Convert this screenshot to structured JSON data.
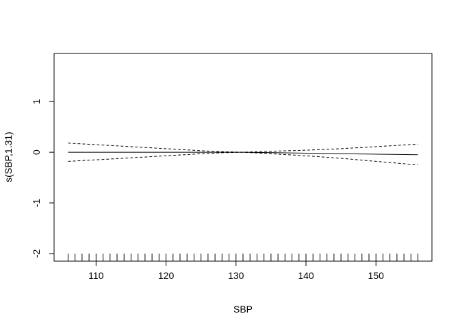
{
  "chart_data": {
    "type": "line",
    "title": "",
    "xlabel": "SBP",
    "ylabel": "s(SBP,1.31)",
    "xlim": [
      104,
      158
    ],
    "ylim": [
      -2.15,
      1.95
    ],
    "x_ticks": [
      110,
      120,
      130,
      140,
      150
    ],
    "y_ticks": [
      -2,
      -1,
      0,
      1
    ],
    "x_tick_labels": [
      "110",
      "120",
      "130",
      "140",
      "150"
    ],
    "y_tick_labels": [
      "-2",
      "-1",
      "0",
      "1"
    ],
    "grid": false,
    "legend": "none",
    "series": [
      {
        "style": "solid",
        "x": [
          106,
          131,
          156
        ],
        "y": [
          0.0,
          0.0,
          -0.05
        ]
      },
      {
        "style": "dashed",
        "x": [
          106,
          110,
          115,
          120,
          125,
          128,
          131,
          135,
          140,
          145,
          150,
          156
        ],
        "y": [
          0.18,
          0.15,
          0.11,
          0.07,
          0.03,
          0.01,
          0.0,
          0.02,
          0.04,
          0.07,
          0.11,
          0.16
        ]
      },
      {
        "style": "dashed",
        "x": [
          106,
          110,
          115,
          120,
          125,
          128,
          131,
          135,
          140,
          145,
          150,
          156
        ],
        "y": [
          -0.18,
          -0.15,
          -0.11,
          -0.07,
          -0.03,
          -0.01,
          0.0,
          -0.03,
          -0.07,
          -0.12,
          -0.18,
          -0.25
        ]
      }
    ],
    "rug_x": [
      106,
      107,
      108,
      109,
      110,
      111,
      112,
      113,
      114,
      115,
      116,
      117,
      118,
      119,
      120,
      121,
      122,
      123,
      124,
      125,
      126,
      127,
      128,
      129,
      130,
      131,
      132,
      133,
      134,
      135,
      136,
      137,
      138,
      139,
      140,
      141,
      142,
      143,
      144,
      145,
      146,
      147,
      148,
      149,
      150,
      151,
      152,
      153,
      154,
      155,
      156
    ]
  }
}
